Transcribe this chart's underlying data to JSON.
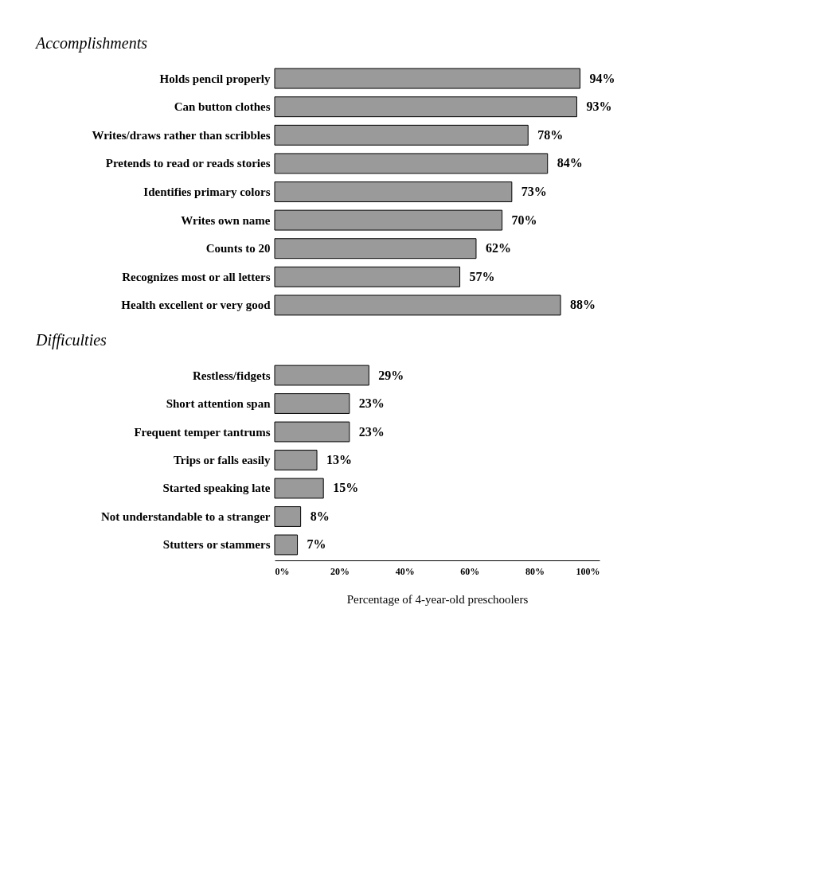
{
  "chart_data": [
    {
      "type": "bar",
      "orientation": "horizontal",
      "title": "Accomplishments",
      "categories": [
        "Holds pencil properly",
        "Can button clothes",
        "Writes/draws rather than scribbles",
        "Pretends to read or reads stories",
        "Identifies primary colors",
        "Writes own name",
        "Counts to 20",
        "Recognizes most or all letters",
        "Health excellent or very good"
      ],
      "values": [
        94,
        93,
        78,
        84,
        73,
        70,
        62,
        57,
        88
      ],
      "value_labels": [
        "94%",
        "93%",
        "78%",
        "84%",
        "73%",
        "70%",
        "62%",
        "57%",
        "88%"
      ],
      "color": "#9a9a9a",
      "xlim": [
        0,
        100
      ],
      "tick_labels": "y",
      "grid": false
    },
    {
      "type": "bar",
      "orientation": "horizontal",
      "title": "Difficulties",
      "xlabel": "Percentage of 4-year-old preschoolers",
      "categories": [
        "Restless/fidgets",
        "Short attention span",
        "Frequent temper tantrums",
        "Trips or falls easily",
        "Started speaking late",
        "Not understandable to a stranger",
        "Stutters or stammers"
      ],
      "values": [
        29,
        23,
        23,
        13,
        15,
        8,
        7
      ],
      "value_labels": [
        "29%",
        "23%",
        "23%",
        "13%",
        "15%",
        "8%",
        "7%"
      ],
      "color": "#9a9a9a",
      "xlim": [
        0,
        100
      ],
      "xticks": [
        {
          "value": 0,
          "label": "0%"
        },
        {
          "value": 20,
          "label": "20%"
        },
        {
          "value": 40,
          "label": "40%"
        },
        {
          "value": 60,
          "label": "60%"
        },
        {
          "value": 80,
          "label": "80%"
        },
        {
          "value": 100,
          "label": "100%"
        }
      ],
      "grid": false
    }
  ]
}
